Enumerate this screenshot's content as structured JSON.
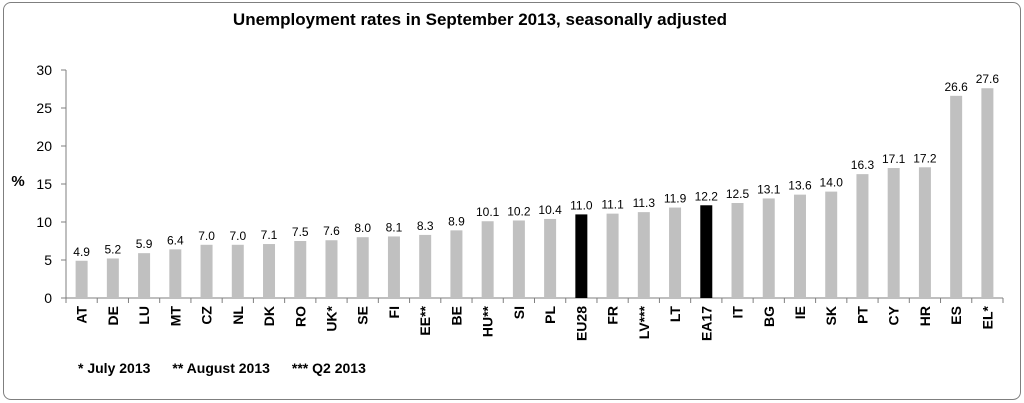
{
  "chart_data": {
    "type": "bar",
    "title": "Unemployment rates in September 2013, seasonally adjusted",
    "ylabel": "%",
    "ylim": [
      0,
      30
    ],
    "yticks": [
      0,
      5,
      10,
      15,
      20,
      25,
      30
    ],
    "categories": [
      "AT",
      "DE",
      "LU",
      "MT",
      "CZ",
      "NL",
      "DK",
      "RO",
      "UK*",
      "SE",
      "FI",
      "EE**",
      "BE",
      "HU**",
      "SI",
      "PL",
      "EU28",
      "FR",
      "LV***",
      "LT",
      "EA17",
      "IT",
      "BG",
      "IE",
      "SK",
      "PT",
      "CY",
      "HR",
      "ES",
      "EL*"
    ],
    "values": [
      4.9,
      5.2,
      5.9,
      6.4,
      7.0,
      7.0,
      7.1,
      7.5,
      7.6,
      8.0,
      8.1,
      8.3,
      8.9,
      10.1,
      10.2,
      10.4,
      11.0,
      11.1,
      11.3,
      11.9,
      12.2,
      12.5,
      13.1,
      13.6,
      14.0,
      16.3,
      17.1,
      17.2,
      26.6,
      27.6
    ],
    "value_labels": [
      "4.9",
      "5.2",
      "5.9",
      "6.4",
      "7.0",
      "7.0",
      "7.1",
      "7.5",
      "7.6",
      "8.0",
      "8.1",
      "8.3",
      "8.9",
      "10.1",
      "10.2",
      "10.4",
      "11.0",
      "11.1",
      "11.3",
      "11.9",
      "12.2",
      "12.5",
      "13.1",
      "13.6",
      "14.0",
      "16.3",
      "17.1",
      "17.2",
      "26.6",
      "27.6"
    ],
    "highlight": [
      "EU28",
      "EA17"
    ],
    "colors": {
      "bar": "#c0c0c0",
      "highlight": "#000000",
      "axis": "#7f7f7f"
    },
    "grid": false,
    "legend": "none"
  },
  "footnotes": [
    "* July 2013",
    "** August 2013",
    "*** Q2 2013"
  ]
}
